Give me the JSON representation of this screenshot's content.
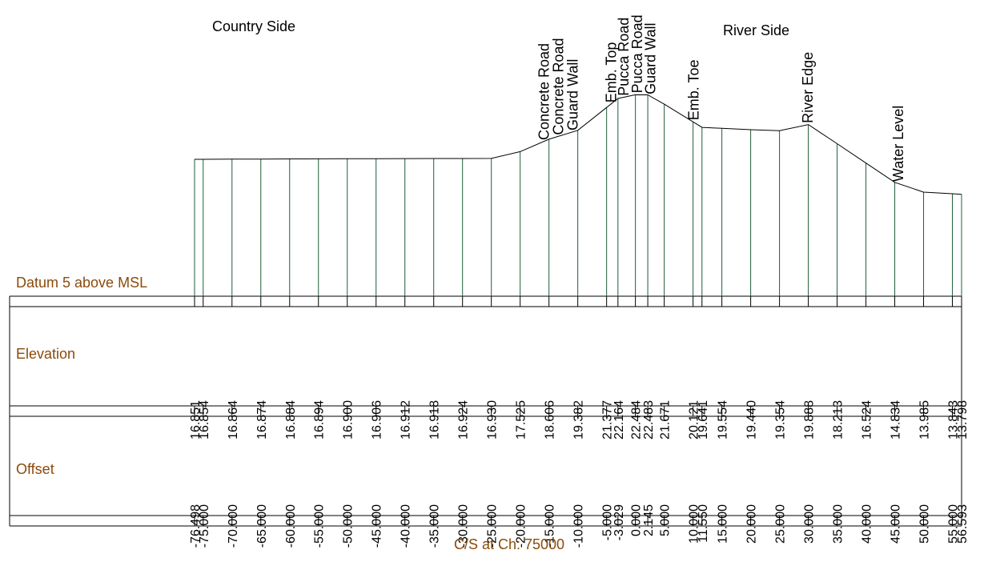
{
  "headings": {
    "country_side": "Country Side",
    "river_side": "River Side"
  },
  "datum_label": "Datum 5 above MSL",
  "row_labels": {
    "elevation": "Elevation",
    "offset": "Offset"
  },
  "footer": "C/S at Ch: 75000",
  "colors": {
    "outline": "#000000",
    "station_line": "#1f5e3a",
    "label_text": "#8b4a0b"
  },
  "chart_data": {
    "type": "line",
    "x_unit": "offset",
    "y_unit": "elevation",
    "points": [
      {
        "offset": "-76.498",
        "elevation": "16.851"
      },
      {
        "offset": "-75.000",
        "elevation": "16.854"
      },
      {
        "offset": "-70.000",
        "elevation": "16.864"
      },
      {
        "offset": "-65.000",
        "elevation": "16.874"
      },
      {
        "offset": "-60.000",
        "elevation": "16.884"
      },
      {
        "offset": "-55.000",
        "elevation": "16.894"
      },
      {
        "offset": "-50.000",
        "elevation": "16.900"
      },
      {
        "offset": "-45.000",
        "elevation": "16.906"
      },
      {
        "offset": "-40.000",
        "elevation": "16.912"
      },
      {
        "offset": "-35.000",
        "elevation": "16.918"
      },
      {
        "offset": "-30.000",
        "elevation": "16.924"
      },
      {
        "offset": "-25.000",
        "elevation": "16.930"
      },
      {
        "offset": "-20.000",
        "elevation": "17.525"
      },
      {
        "offset": "-15.000",
        "elevation": "18.606"
      },
      {
        "offset": "-10.000",
        "elevation": "19.382"
      },
      {
        "offset": "-5.000",
        "elevation": "21.377"
      },
      {
        "offset": "-3.029",
        "elevation": "22.164"
      },
      {
        "offset": "0.000",
        "elevation": "22.484"
      },
      {
        "offset": "2.145",
        "elevation": "22.483"
      },
      {
        "offset": "5.000",
        "elevation": "21.671"
      },
      {
        "offset": "10.000",
        "elevation": "20.121"
      },
      {
        "offset": "11.550",
        "elevation": "19.641"
      },
      {
        "offset": "15.000",
        "elevation": "19.554"
      },
      {
        "offset": "20.000",
        "elevation": "19.440"
      },
      {
        "offset": "25.000",
        "elevation": "19.354"
      },
      {
        "offset": "30.000",
        "elevation": "19.888"
      },
      {
        "offset": "35.000",
        "elevation": "18.213"
      },
      {
        "offset": "40.000",
        "elevation": "16.524"
      },
      {
        "offset": "45.000",
        "elevation": "14.834"
      },
      {
        "offset": "50.000",
        "elevation": "13.985"
      },
      {
        "offset": "55.000",
        "elevation": "13.843"
      },
      {
        "offset": "56.593",
        "elevation": "13.798"
      }
    ],
    "annotations": [
      {
        "text": "Concrete Road",
        "offset": -16.0
      },
      {
        "text": "Concrete Road",
        "offset": -13.5
      },
      {
        "text": "Guard Wall",
        "offset": -11.0
      },
      {
        "text": "Emb. Top",
        "offset": -4.3
      },
      {
        "text": "Pucca Road",
        "offset": -2.2
      },
      {
        "text": "Pucca Road",
        "offset": 0.2
      },
      {
        "text": "Guard Wall",
        "offset": 2.5
      },
      {
        "text": "Emb. Toe",
        "offset": 10.0
      },
      {
        "text": "River Edge",
        "offset": 29.8
      },
      {
        "text": "Water Level",
        "offset": 45.5
      }
    ]
  }
}
